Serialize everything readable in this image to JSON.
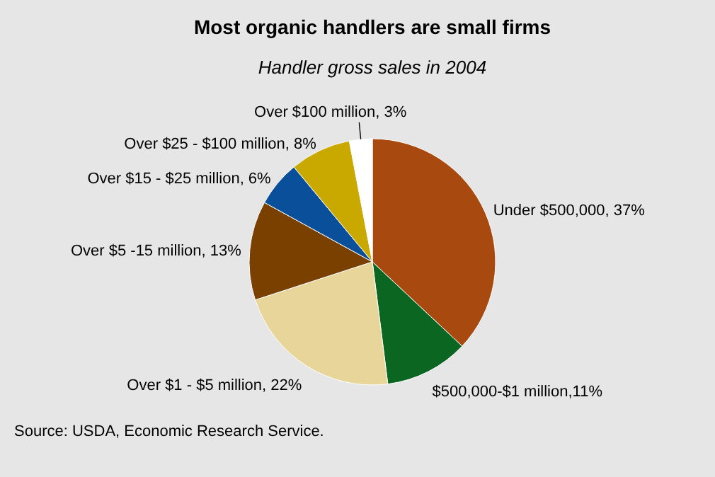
{
  "chart_data": {
    "type": "pie",
    "title": "Most organic handlers are small firms",
    "subtitle": "Handler gross sales in 2004",
    "categories": [
      "Under $500,000, 37%",
      "$500,000-$1 million,11%",
      "Over $1 - $5 million, 22%",
      "Over $5 -15 million, 13%",
      "Over $15 - $25 million, 6%",
      "Over $25 - $100 million, 8%",
      "Over $100 million, 3%"
    ],
    "values": [
      37,
      11,
      22,
      13,
      6,
      8,
      3
    ],
    "colors": [
      "#a84a10",
      "#0a6620",
      "#e8d59a",
      "#7a4000",
      "#0a4f9a",
      "#c9a800",
      "#ffffff"
    ],
    "annotations": [
      "Source: USDA, Economic Research Service."
    ]
  }
}
